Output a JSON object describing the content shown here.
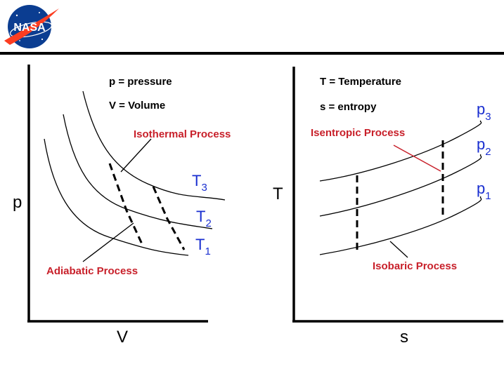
{
  "logo": {
    "text": "NASA",
    "colors": {
      "disc": "#0b3d91",
      "swoosh": "#fc3d21"
    }
  },
  "header_rule_color": "#000000",
  "left_diagram": {
    "legend_p": "p = pressure",
    "legend_v": "V = Volume",
    "y_axis": "p",
    "x_axis": "V",
    "isothermal_label": "Isothermal Process",
    "adiabatic_label": "Adiabatic Process",
    "curve_labels": [
      {
        "main": "T",
        "sub": "3"
      },
      {
        "main": "T",
        "sub": "2"
      },
      {
        "main": "T",
        "sub": "1"
      }
    ]
  },
  "right_diagram": {
    "legend_t": "T = Temperature",
    "legend_s": "s = entropy",
    "y_axis": "T",
    "x_axis": "s",
    "isentropic_label": "Isentropic Process",
    "isobaric_label": "Isobaric Process",
    "curve_labels": [
      {
        "main": "p",
        "sub": "3"
      },
      {
        "main": "p",
        "sub": "2"
      },
      {
        "main": "p",
        "sub": "1"
      }
    ]
  },
  "colors": {
    "label_red": "#c8202a",
    "label_blue": "#1a2fd0"
  }
}
